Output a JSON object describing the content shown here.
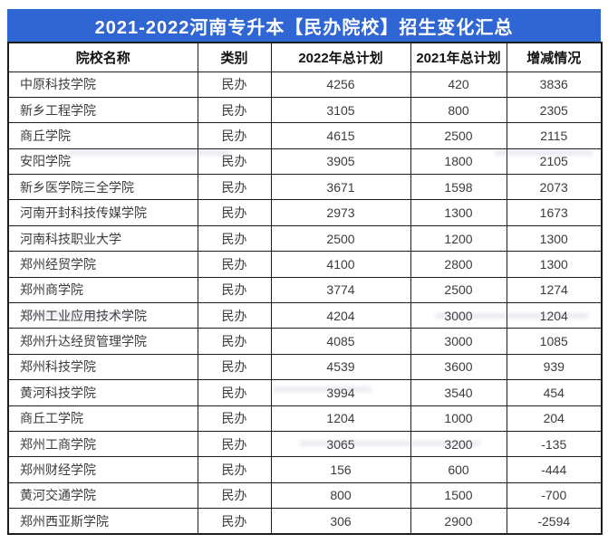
{
  "title": "2021-2022河南专升本【民办院校】招生变化汇总",
  "table": {
    "headers": [
      "院校名称",
      "类别",
      "2022年总计划",
      "2021年总计划",
      "增减情况"
    ],
    "rows": [
      {
        "name": "中原科技学院",
        "category": "民办",
        "plan2022": "4256",
        "plan2021": "420",
        "change": "3836"
      },
      {
        "name": "新乡工程学院",
        "category": "民办",
        "plan2022": "3105",
        "plan2021": "800",
        "change": "2305"
      },
      {
        "name": "商丘学院",
        "category": "民办",
        "plan2022": "4615",
        "plan2021": "2500",
        "change": "2115"
      },
      {
        "name": "安阳学院",
        "category": "民办",
        "plan2022": "3905",
        "plan2021": "1800",
        "change": "2105"
      },
      {
        "name": "新乡医学院三全学院",
        "category": "民办",
        "plan2022": "3671",
        "plan2021": "1598",
        "change": "2073"
      },
      {
        "name": "河南开封科技传媒学院",
        "category": "民办",
        "plan2022": "2973",
        "plan2021": "1300",
        "change": "1673"
      },
      {
        "name": "河南科技职业大学",
        "category": "民办",
        "plan2022": "2500",
        "plan2021": "1200",
        "change": "1300"
      },
      {
        "name": "郑州经贸学院",
        "category": "民办",
        "plan2022": "4100",
        "plan2021": "2800",
        "change": "1300"
      },
      {
        "name": "郑州商学院",
        "category": "民办",
        "plan2022": "3774",
        "plan2021": "2500",
        "change": "1274"
      },
      {
        "name": "郑州工业应用技术学院",
        "category": "民办",
        "plan2022": "4204",
        "plan2021": "3000",
        "change": "1204"
      },
      {
        "name": "郑州升达经贸管理学院",
        "category": "民办",
        "plan2022": "4085",
        "plan2021": "3000",
        "change": "1085"
      },
      {
        "name": "郑州科技学院",
        "category": "民办",
        "plan2022": "4539",
        "plan2021": "3600",
        "change": "939"
      },
      {
        "name": "黄河科技学院",
        "category": "民办",
        "plan2022": "3994",
        "plan2021": "3540",
        "change": "454"
      },
      {
        "name": "商丘工学院",
        "category": "民办",
        "plan2022": "1204",
        "plan2021": "1000",
        "change": "204"
      },
      {
        "name": "郑州工商学院",
        "category": "民办",
        "plan2022": "3065",
        "plan2021": "3200",
        "change": "-135"
      },
      {
        "name": "郑州财经学院",
        "category": "民办",
        "plan2022": "156",
        "plan2021": "600",
        "change": "-444"
      },
      {
        "name": "黄河交通学院",
        "category": "民办",
        "plan2022": "800",
        "plan2021": "1500",
        "change": "-700"
      },
      {
        "name": "郑州西亚斯学院",
        "category": "民办",
        "plan2022": "306",
        "plan2021": "2900",
        "change": "-2594"
      }
    ]
  },
  "colors": {
    "title_bar": "#2f66d3",
    "title_text": "#ffffff",
    "table_border": "#1e1e1e",
    "header_text": "#121212",
    "cell_text": "#3c3c3c",
    "background": "#ffffff"
  },
  "chart_data": {
    "type": "table",
    "title": "2021-2022河南专升本【民办院校】招生变化汇总",
    "columns": [
      "院校名称",
      "类别",
      "2022年总计划",
      "2021年总计划",
      "增减情况"
    ],
    "rows": [
      [
        "中原科技学院",
        "民办",
        4256,
        420,
        3836
      ],
      [
        "新乡工程学院",
        "民办",
        3105,
        800,
        2305
      ],
      [
        "商丘学院",
        "民办",
        4615,
        2500,
        2115
      ],
      [
        "安阳学院",
        "民办",
        3905,
        1800,
        2105
      ],
      [
        "新乡医学院三全学院",
        "民办",
        3671,
        1598,
        2073
      ],
      [
        "河南开封科技传媒学院",
        "民办",
        2973,
        1300,
        1673
      ],
      [
        "河南科技职业大学",
        "民办",
        2500,
        1200,
        1300
      ],
      [
        "郑州经贸学院",
        "民办",
        4100,
        2800,
        1300
      ],
      [
        "郑州商学院",
        "民办",
        3774,
        2500,
        1274
      ],
      [
        "郑州工业应用技术学院",
        "民办",
        4204,
        3000,
        1204
      ],
      [
        "郑州升达经贸管理学院",
        "民办",
        4085,
        3000,
        1085
      ],
      [
        "郑州科技学院",
        "民办",
        4539,
        3600,
        939
      ],
      [
        "黄河科技学院",
        "民办",
        3994,
        3540,
        454
      ],
      [
        "商丘工学院",
        "民办",
        1204,
        1000,
        204
      ],
      [
        "郑州工商学院",
        "民办",
        3065,
        3200,
        -135
      ],
      [
        "郑州财经学院",
        "民办",
        156,
        600,
        -444
      ],
      [
        "黄河交通学院",
        "民办",
        800,
        1500,
        -700
      ],
      [
        "郑州西亚斯学院",
        "民办",
        306,
        2900,
        -2594
      ]
    ],
    "layout_hints": {
      "header_style": "bold dark text on white",
      "title_style": "white bold text on royal blue bar",
      "name_column_align": "left",
      "other_columns_align": "center",
      "grid": true
    }
  }
}
